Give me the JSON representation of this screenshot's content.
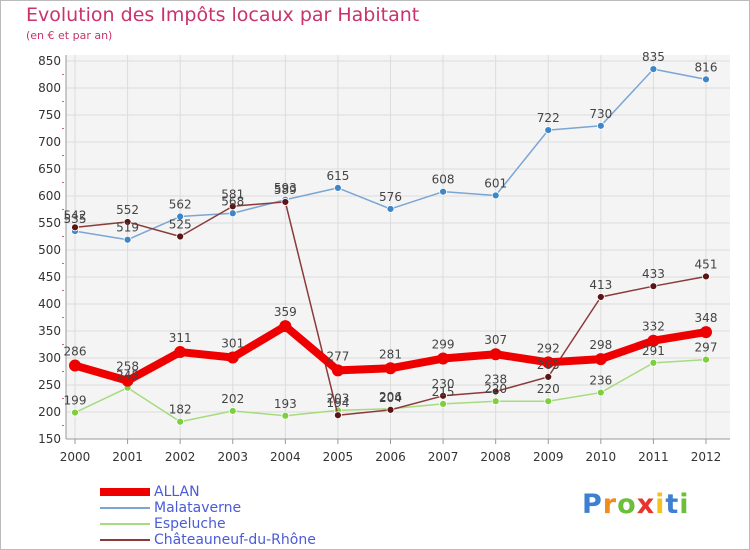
{
  "chart_data": {
    "type": "line",
    "title": "Evolution des Impôts locaux par Habitant",
    "subtitle": "(en € et par an)",
    "x": [
      "2000",
      "2001",
      "2002",
      "2003",
      "2004",
      "2005",
      "2006",
      "2007",
      "2008",
      "2009",
      "2010",
      "2011",
      "2012"
    ],
    "ylim": [
      150,
      850
    ],
    "yticks": [
      150,
      200,
      250,
      300,
      350,
      400,
      450,
      500,
      550,
      600,
      650,
      700,
      750,
      800,
      850
    ],
    "grid": true,
    "legend_position": "bottom-left",
    "series": [
      {
        "name": "ALLAN",
        "color": "#ee0000",
        "values": [
          286,
          258,
          311,
          301,
          359,
          277,
          281,
          299,
          307,
          292,
          298,
          332,
          348
        ]
      },
      {
        "name": "Malataverne",
        "color": "#7aa6d4",
        "marker_color": "#3f86c8",
        "values": [
          535,
          519,
          562,
          568,
          593,
          615,
          576,
          608,
          601,
          722,
          730,
          835,
          816
        ]
      },
      {
        "name": "Espeluche",
        "color": "#a6db7e",
        "marker_color": "#7ccf3d",
        "values": [
          199,
          245,
          182,
          202,
          193,
          203,
          206,
          215,
          220,
          220,
          236,
          291,
          297
        ]
      },
      {
        "name": "Châteauneuf-du-Rhône",
        "color": "#8b3a3a",
        "marker_color": "#5c1515",
        "values": [
          542,
          552,
          525,
          581,
          589,
          194,
          204,
          230,
          238,
          265,
          413,
          433,
          451
        ]
      }
    ]
  },
  "logo": {
    "letters": [
      "P",
      "r",
      "o",
      "x",
      "i",
      "t",
      "i"
    ],
    "colors": [
      "#3d7fd1",
      "#f08c1e",
      "#6cbf3b",
      "#e8342b",
      "#f4c21c",
      "#3d7fd1",
      "#6cbf3b"
    ]
  }
}
